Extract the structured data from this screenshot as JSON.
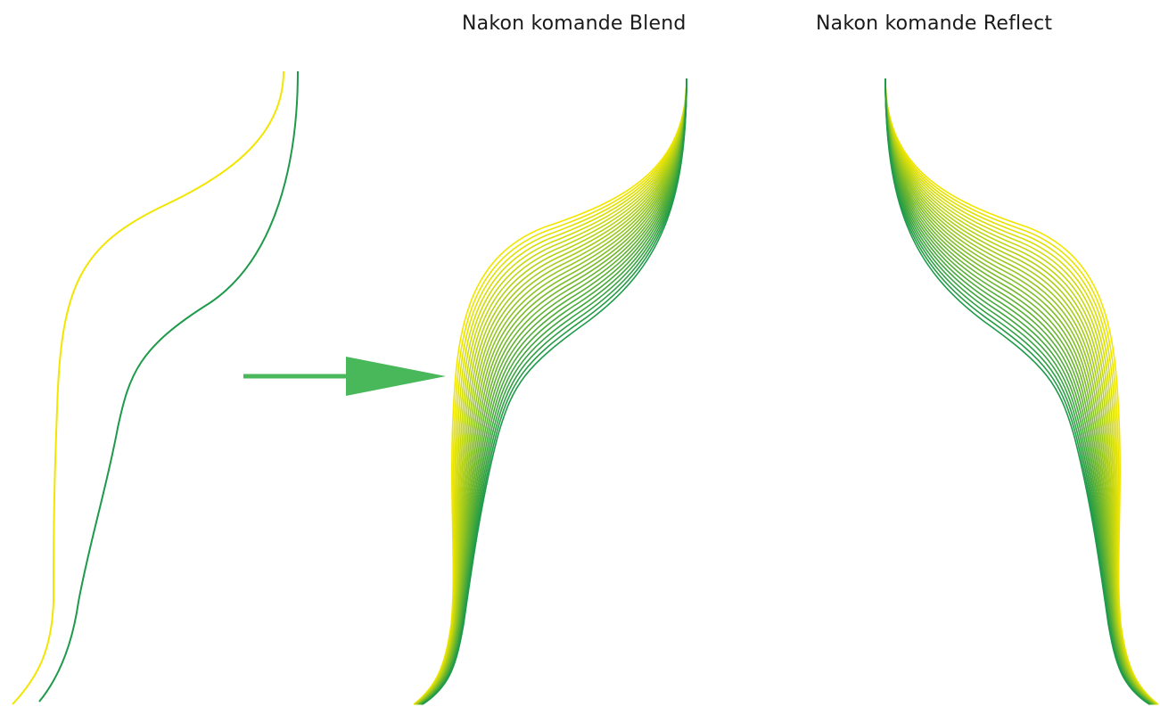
{
  "captions": {
    "blend": "Nakon komande Blend",
    "reflect": "Nakon komande Reflect"
  },
  "colors": {
    "start_curve": "#f2e600",
    "end_curve": "#1e9a4a",
    "arrow": "#49b85a",
    "background": "#ffffff"
  },
  "blend": {
    "steps": 26
  }
}
